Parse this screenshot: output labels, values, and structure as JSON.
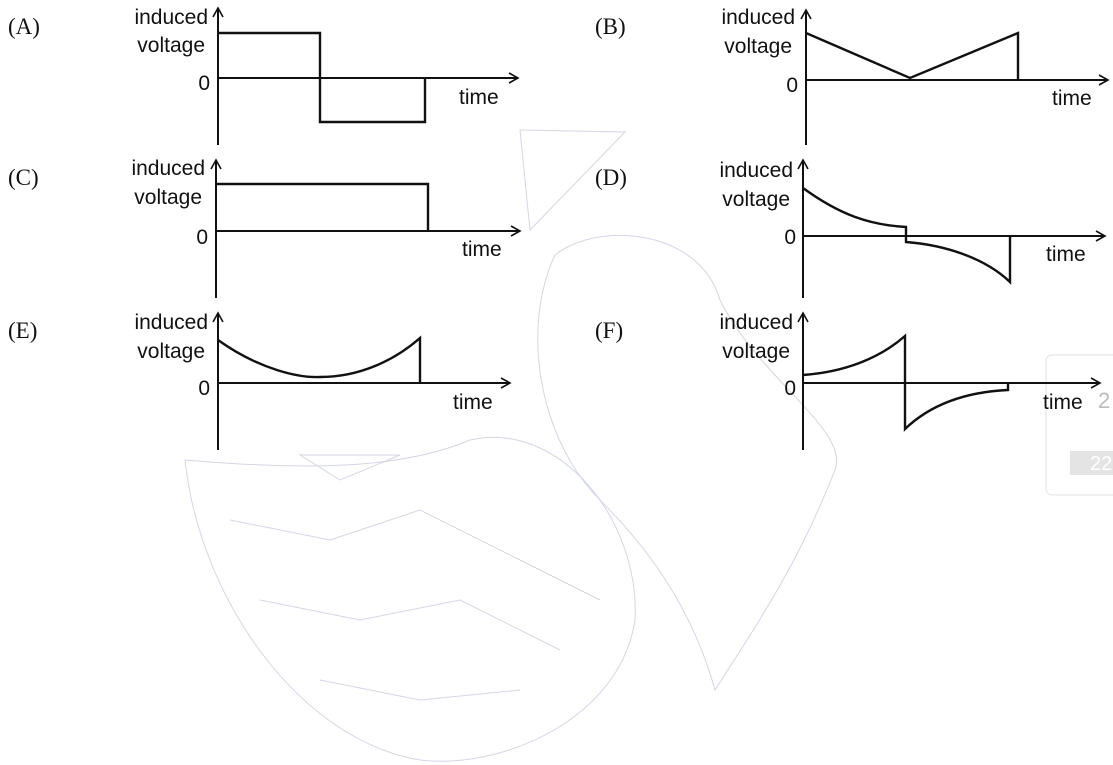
{
  "options": [
    {
      "label": "(A)",
      "y_label": [
        "induced",
        "voltage"
      ],
      "zero": "0",
      "x_label": "time"
    },
    {
      "label": "(B)",
      "y_label": [
        "induced",
        "voltage"
      ],
      "zero": "0",
      "x_label": "time"
    },
    {
      "label": "(C)",
      "y_label": [
        "induced",
        "voltage"
      ],
      "zero": "0",
      "x_label": "time"
    },
    {
      "label": "(D)",
      "y_label": [
        "induced",
        "voltage"
      ],
      "zero": "0",
      "x_label": "time"
    },
    {
      "label": "(E)",
      "y_label": [
        "induced",
        "voltage"
      ],
      "zero": "0",
      "x_label": "time"
    },
    {
      "label": "(F)",
      "y_label": [
        "induced",
        "voltage"
      ],
      "zero": "0",
      "x_label": "time"
    }
  ],
  "side_fragments": [
    "2",
    "22"
  ]
}
